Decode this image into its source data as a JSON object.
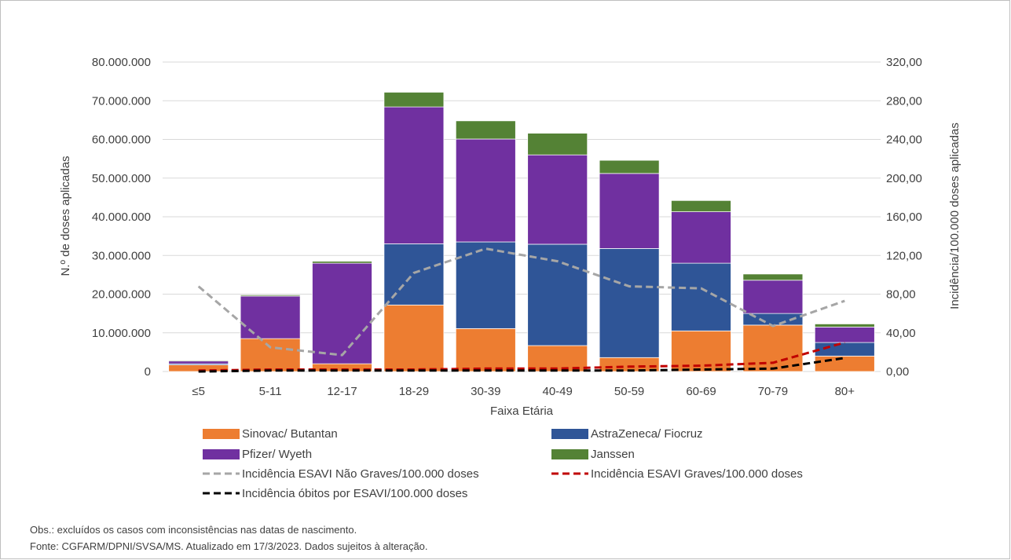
{
  "chart_data": {
    "type": "bar",
    "stacked": true,
    "xlabel": "Faixa Etária",
    "ylabel": "N.º de doses aplicadas",
    "y2label": "Incidência/100.000 doses aplicadas",
    "ylim": [
      0,
      80000000
    ],
    "y2lim": [
      0,
      320
    ],
    "yticks": [
      "0",
      "10.000.000",
      "20.000.000",
      "30.000.000",
      "40.000.000",
      "50.000.000",
      "60.000.000",
      "70.000.000",
      "80.000.000"
    ],
    "y2ticks": [
      "0,00",
      "40,00",
      "80,00",
      "120,00",
      "160,00",
      "200,00",
      "240,00",
      "280,00",
      "320,00"
    ],
    "grid": true,
    "legend_position": "bottom",
    "categories": [
      "≤5",
      "5-11",
      "12-17",
      "18-29",
      "30-39",
      "40-49",
      "50-59",
      "60-69",
      "70-79",
      "80+"
    ],
    "series": [
      {
        "name": "Sinovac/ Butantan",
        "kind": "bar",
        "color": "#ed7d31",
        "values": [
          1700000,
          8500000,
          2000000,
          17200000,
          11100000,
          6700000,
          3600000,
          10500000,
          12000000,
          4000000
        ]
      },
      {
        "name": "AstraZeneca/ Fiocruz",
        "kind": "bar",
        "color": "#2f5597",
        "values": [
          300000,
          0,
          0,
          15800000,
          22400000,
          26200000,
          28200000,
          17500000,
          3000000,
          3500000
        ]
      },
      {
        "name": "Pfizer/ Wyeth",
        "kind": "bar",
        "color": "#7030a0",
        "values": [
          700000,
          11000000,
          26000000,
          35400000,
          26600000,
          23100000,
          19400000,
          13300000,
          8600000,
          4000000
        ]
      },
      {
        "name": "Janssen",
        "kind": "bar",
        "color": "#548235",
        "values": [
          200000,
          300000,
          500000,
          3800000,
          4700000,
          5600000,
          3400000,
          2900000,
          1600000,
          800000
        ]
      },
      {
        "name": "Incidência ESAVI Não Graves/100.000 doses",
        "kind": "line",
        "axis": "right",
        "color": "#a6a6a6",
        "values": [
          88,
          25,
          17,
          102,
          127,
          114,
          88,
          86,
          47,
          73
        ]
      },
      {
        "name": "Incidência ESAVI Graves/100.000 doses",
        "kind": "line",
        "axis": "right",
        "color": "#c00000",
        "values": [
          1,
          2,
          2,
          2,
          3,
          3,
          5,
          6,
          9,
          30
        ]
      },
      {
        "name": "Incidência óbitos por ESAVI/100.000 doses",
        "kind": "line",
        "axis": "right",
        "color": "#000000",
        "values": [
          0,
          1,
          1,
          1,
          1,
          1,
          1,
          2,
          3,
          14
        ]
      }
    ]
  },
  "notes": {
    "obs": "Obs.: excluídos os casos com inconsistências nas datas de nascimento.",
    "fonte": "Fonte: CGFARM/DPNI/SVSA/MS. Atualizado em 17/3/2023. Dados sujeitos à alteração."
  }
}
